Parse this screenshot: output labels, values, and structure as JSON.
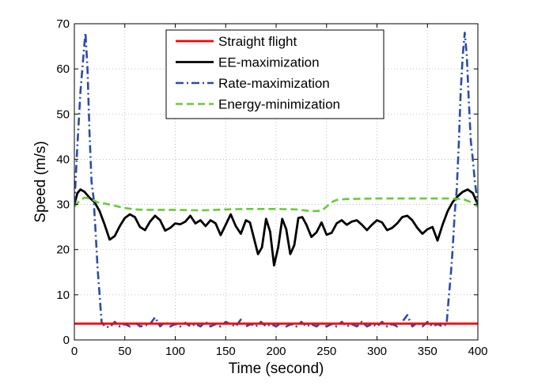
{
  "chart_data": {
    "type": "line",
    "title": "",
    "xlabel": "Time (second)",
    "ylabel": "Speed (m/s)",
    "xlim": [
      0,
      400
    ],
    "ylim": [
      0,
      70
    ],
    "xticks": [
      0,
      50,
      100,
      150,
      200,
      250,
      300,
      350,
      400
    ],
    "yticks": [
      0,
      10,
      20,
      30,
      40,
      50,
      60,
      70
    ],
    "grid": true,
    "legend_position": "top-center",
    "series": [
      {
        "name": "Straight flight",
        "color": "#ff0000",
        "style": "solid",
        "x": [
          0,
          400
        ],
        "y": [
          3.6,
          3.6
        ]
      },
      {
        "name": "EE-maximization",
        "color": "#000000",
        "style": "solid",
        "x": [
          0,
          3,
          6,
          10,
          15,
          20,
          25,
          30,
          35,
          40,
          45,
          50,
          55,
          60,
          65,
          70,
          75,
          80,
          85,
          90,
          95,
          100,
          105,
          110,
          115,
          120,
          125,
          130,
          135,
          140,
          145,
          150,
          155,
          160,
          165,
          170,
          174,
          178,
          182,
          186,
          190,
          194,
          198,
          202,
          206,
          210,
          214,
          218,
          222,
          226,
          230,
          235,
          240,
          245,
          250,
          255,
          260,
          265,
          270,
          275,
          280,
          285,
          290,
          295,
          300,
          305,
          310,
          315,
          320,
          325,
          330,
          335,
          340,
          345,
          350,
          355,
          360,
          365,
          370,
          375,
          380,
          385,
          390,
          395,
          400
        ],
        "y": [
          30,
          32.5,
          33.3,
          32.8,
          31.5,
          30.5,
          28.5,
          25.5,
          22.2,
          23,
          25.2,
          27,
          27.8,
          27.2,
          25,
          24.3,
          26.2,
          27.5,
          26.5,
          24.2,
          24.8,
          25.8,
          25.6,
          26.2,
          27.5,
          25.8,
          26.5,
          25.2,
          26.5,
          25.8,
          23.2,
          25.5,
          27.8,
          25.2,
          23.5,
          26.5,
          26,
          22.5,
          19,
          20.5,
          26.8,
          24,
          16.5,
          20.5,
          26.8,
          24.5,
          19,
          21,
          27,
          27.2,
          25.5,
          22.8,
          23.8,
          26,
          23.3,
          23.7,
          25.8,
          26.5,
          25.5,
          26.2,
          26.5,
          25.5,
          24.3,
          25.5,
          26.5,
          26,
          24.3,
          24.8,
          25.8,
          27.2,
          27.5,
          26.5,
          24.8,
          23.5,
          24.5,
          25,
          22,
          25.5,
          28.5,
          30.5,
          31.8,
          32.8,
          33.3,
          32.5,
          30
        ]
      },
      {
        "name": "Rate-maximization",
        "color": "#2b4ba9",
        "style": "dashdot",
        "x": [
          0,
          3,
          6,
          9,
          11,
          13,
          15,
          17,
          19,
          21,
          23,
          25,
          27,
          30,
          35,
          40,
          45,
          50,
          55,
          60,
          65,
          70,
          75,
          80,
          85,
          90,
          95,
          100,
          105,
          110,
          115,
          120,
          125,
          130,
          135,
          140,
          145,
          150,
          155,
          160,
          165,
          170,
          175,
          180,
          185,
          190,
          195,
          200,
          205,
          210,
          215,
          220,
          225,
          230,
          235,
          240,
          245,
          250,
          255,
          260,
          265,
          270,
          275,
          280,
          285,
          290,
          295,
          300,
          305,
          310,
          315,
          320,
          325,
          330,
          335,
          340,
          345,
          350,
          355,
          360,
          365,
          369,
          371,
          373,
          375,
          377,
          379,
          381,
          383,
          385,
          387,
          389,
          391,
          393,
          395,
          397,
          400
        ],
        "y": [
          30,
          43,
          55,
          63,
          68,
          60,
          46,
          35,
          31.5,
          24,
          16,
          10,
          4,
          3,
          2.8,
          4,
          3,
          3.5,
          3,
          4,
          3,
          3.2,
          3.5,
          5,
          3,
          4,
          3,
          3.5,
          3,
          3.8,
          3,
          3.5,
          3,
          4,
          3,
          3.5,
          3,
          4,
          3.5,
          3,
          4.5,
          3,
          3.5,
          3,
          4,
          3,
          3.5,
          3,
          3.8,
          3,
          3.5,
          3,
          4,
          3,
          3.5,
          3,
          3.8,
          3,
          3.5,
          3,
          4,
          3,
          3.5,
          3,
          4,
          3,
          3.5,
          3,
          4,
          3,
          3.5,
          3,
          4,
          5.5,
          3,
          3.8,
          3,
          4,
          3,
          3.5,
          3,
          3.5,
          9,
          14,
          20,
          28,
          33,
          43,
          55,
          63,
          68,
          63,
          53,
          44,
          40,
          35,
          30
        ]
      },
      {
        "name": "Energy-minimization",
        "color": "#66cc33",
        "style": "dashed",
        "x": [
          0,
          5,
          10,
          15,
          20,
          25,
          30,
          40,
          50,
          60,
          70,
          80,
          100,
          120,
          130,
          150,
          170,
          200,
          220,
          235,
          245,
          250,
          255,
          260,
          270,
          300,
          340,
          370,
          385,
          393,
          400
        ],
        "y": [
          29.5,
          30.8,
          31.5,
          31.3,
          30.8,
          30.3,
          30.2,
          29.7,
          29.2,
          28.9,
          28.8,
          28.8,
          28.8,
          28.7,
          28.7,
          28.9,
          29,
          29,
          28.9,
          28.5,
          28.6,
          29.5,
          30.5,
          31,
          31.2,
          31.3,
          31.3,
          31.3,
          31.2,
          30.5,
          29.5
        ]
      }
    ]
  }
}
